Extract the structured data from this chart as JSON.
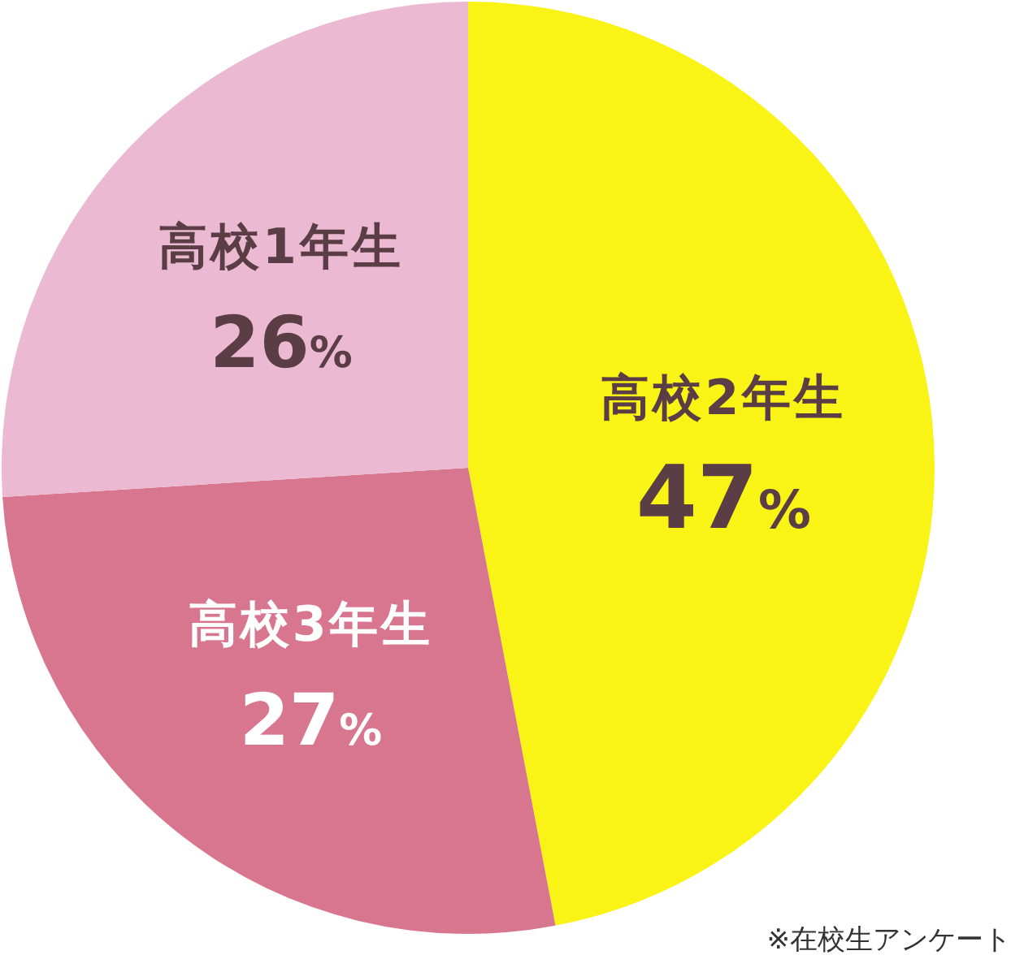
{
  "chart_data": {
    "type": "pie",
    "categories": [
      "高校2年生",
      "高校3年生",
      "高校1年生"
    ],
    "values": [
      47,
      27,
      26
    ],
    "value_labels": [
      "47%",
      "27%",
      "26%"
    ],
    "colors": [
      "#f9f316",
      "#d9768f",
      "#ebb9d2"
    ],
    "annotations": [
      "※在校生アンケート"
    ]
  }
}
